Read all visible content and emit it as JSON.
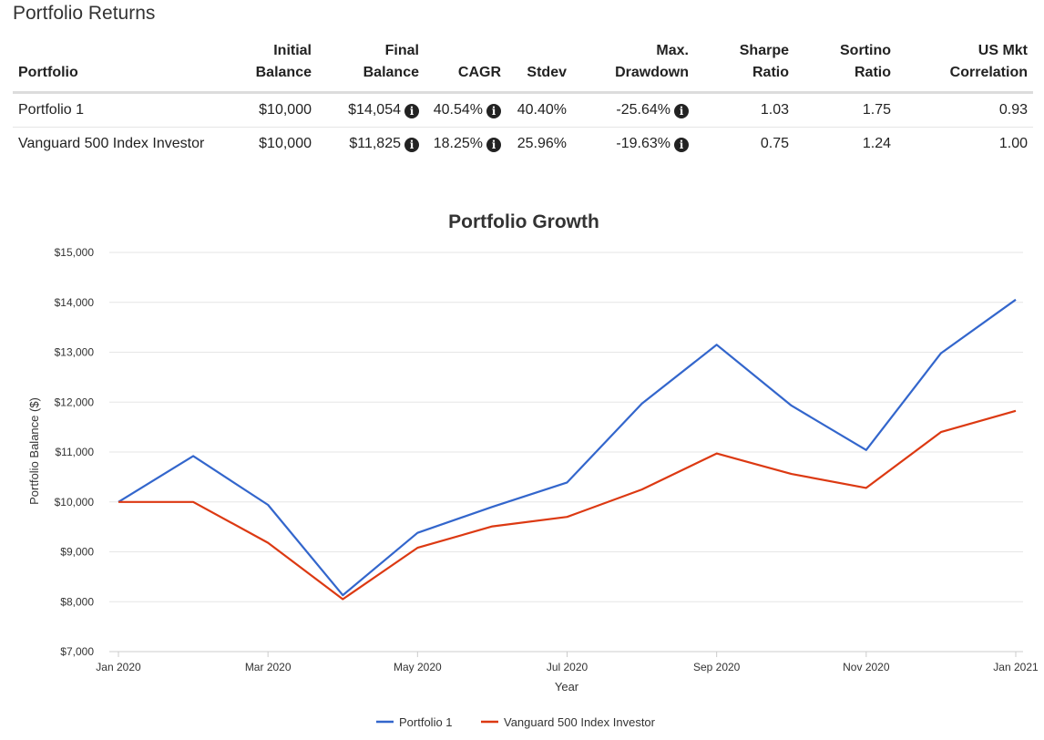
{
  "section_title": "Portfolio Returns",
  "table": {
    "headers": {
      "portfolio": "Portfolio",
      "initial_1": "Initial",
      "initial_2": "Balance",
      "final_1": "Final",
      "final_2": "Balance",
      "cagr": "CAGR",
      "stdev": "Stdev",
      "maxdd_1": "Max.",
      "maxdd_2": "Drawdown",
      "sharpe_1": "Sharpe",
      "sharpe_2": "Ratio",
      "sortino_1": "Sortino",
      "sortino_2": "Ratio",
      "corr_1": "US Mkt",
      "corr_2": "Correlation"
    },
    "rows": [
      {
        "portfolio": "Portfolio 1",
        "initial": "$10,000",
        "final": "$14,054",
        "cagr": "40.54%",
        "stdev": "40.40%",
        "max_drawdown": "-25.64%",
        "sharpe": "1.03",
        "sortino": "1.75",
        "correlation": "0.93"
      },
      {
        "portfolio": "Vanguard 500 Index Investor",
        "initial": "$10,000",
        "final": "$11,825",
        "cagr": "18.25%",
        "stdev": "25.96%",
        "max_drawdown": "-19.63%",
        "sharpe": "0.75",
        "sortino": "1.24",
        "correlation": "1.00"
      }
    ],
    "info_icon": "info-circle-icon",
    "info_glyph": "i"
  },
  "chart_data": {
    "type": "line",
    "title": "Portfolio Growth",
    "xlabel": "Year",
    "ylabel": "Portfolio Balance ($)",
    "ylim": [
      7000,
      15000
    ],
    "y_ticks": [
      7000,
      8000,
      9000,
      10000,
      11000,
      12000,
      13000,
      14000,
      15000
    ],
    "y_tick_labels": [
      "$7,000",
      "$8,000",
      "$9,000",
      "$10,000",
      "$11,000",
      "$12,000",
      "$13,000",
      "$14,000",
      "$15,000"
    ],
    "x": [
      "Jan 2020",
      "Feb 2020",
      "Mar 2020",
      "Apr 2020",
      "May 2020",
      "Jun 2020",
      "Jul 2020",
      "Aug 2020",
      "Sep 2020",
      "Oct 2020",
      "Nov 2020",
      "Dec 2020",
      "Jan 2021"
    ],
    "x_tick_labels": [
      "Jan 2020",
      "Mar 2020",
      "May 2020",
      "Jul 2020",
      "Sep 2020",
      "Nov 2020",
      "Jan 2021"
    ],
    "grid": true,
    "legend_position": "bottom-center",
    "series": [
      {
        "name": "Portfolio 1",
        "color": "#3366cc",
        "values": [
          10000,
          10920,
          9940,
          8130,
          9380,
          9900,
          10390,
          11970,
          13150,
          11930,
          11040,
          12980,
          14054
        ]
      },
      {
        "name": "Vanguard 500 Index Investor",
        "color": "#dc3912",
        "values": [
          10000,
          10000,
          9180,
          8050,
          9080,
          9510,
          9700,
          10250,
          10970,
          10560,
          10280,
          11400,
          11825
        ]
      }
    ]
  }
}
